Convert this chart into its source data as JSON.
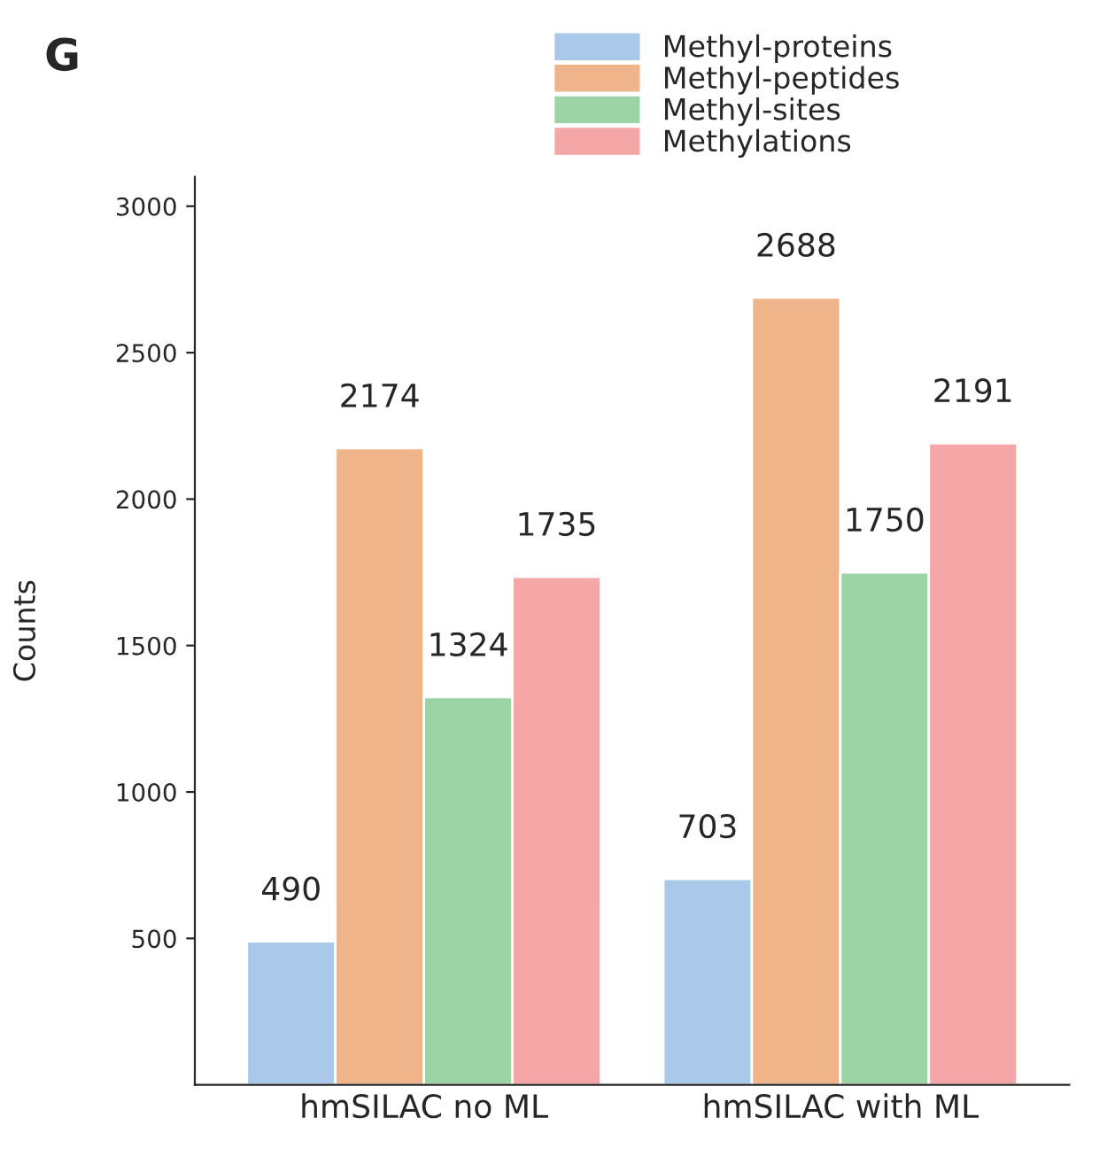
{
  "chart_data": {
    "type": "bar",
    "ylabel": "Counts",
    "categories": [
      "hmSILAC no ML",
      "hmSILAC with ML"
    ],
    "series": [
      {
        "name": "Methyl-proteins",
        "color": "#a9c8ea",
        "values": [
          490,
          703
        ]
      },
      {
        "name": "Methyl-peptides",
        "color": "#f0b48a",
        "values": [
          2174,
          2688
        ]
      },
      {
        "name": "Methyl-sites",
        "color": "#9dd4a6",
        "values": [
          1324,
          1750
        ]
      },
      {
        "name": "Methylations",
        "color": "#f4a7a6",
        "values": [
          1735,
          2191
        ]
      }
    ],
    "ylim": [
      0,
      3100
    ],
    "yticks": [
      500,
      1000,
      1500,
      2000,
      2500,
      3000
    ],
    "data_labels": true,
    "grid": false,
    "legend": "top right",
    "annotations": [
      "G"
    ]
  }
}
